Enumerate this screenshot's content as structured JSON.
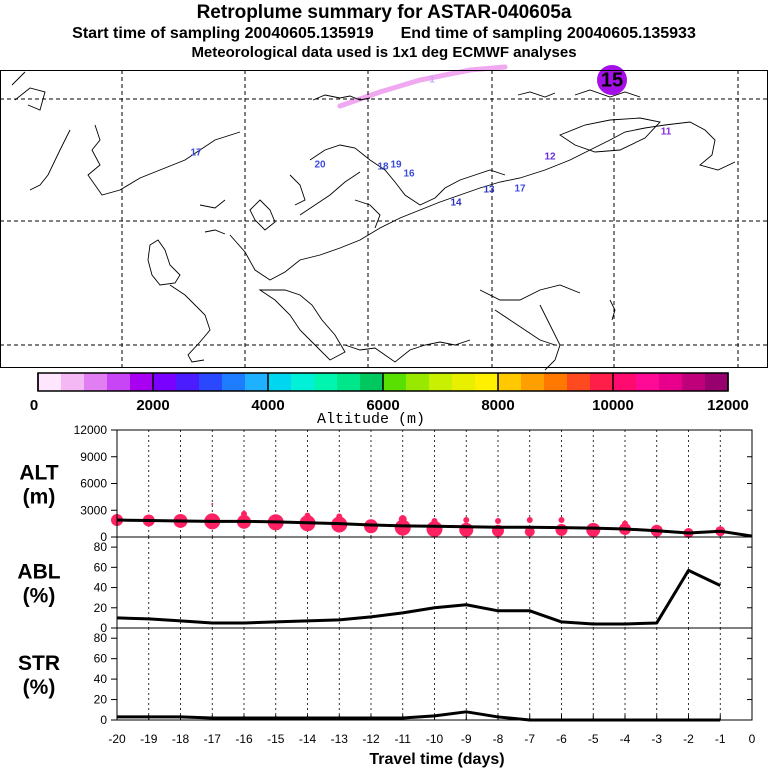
{
  "header": {
    "title": "Retroplume summary for ASTAR-040605a",
    "start_label": "Start time of sampling",
    "start_value": "20040605.135919",
    "end_label": "End time of sampling",
    "end_value": "20040605.135933",
    "met_note": "Meteorological data used is 1x1 deg ECMWF analyses"
  },
  "map": {
    "labels": [
      {
        "text": "1",
        "color": "#c9a3ff"
      },
      {
        "text": "15",
        "color": "#9400e0"
      },
      {
        "text": "17",
        "color": "#3a4bdc"
      },
      {
        "text": "20",
        "color": "#3a4bdc"
      },
      {
        "text": "19",
        "color": "#3a4bdc"
      },
      {
        "text": "18",
        "color": "#3a4bdc"
      },
      {
        "text": "16",
        "color": "#3a4bdc"
      },
      {
        "text": "13",
        "color": "#2d35c0"
      },
      {
        "text": "14",
        "color": "#2d35c0"
      },
      {
        "text": "17",
        "color": "#3a4bdc"
      },
      {
        "text": "12",
        "color": "#6a2ce0"
      },
      {
        "text": "11",
        "color": "#8a2ae0"
      }
    ]
  },
  "colorbar": {
    "colors": [
      "#ffe6ff",
      "#f4b8f4",
      "#e07ef2",
      "#c845f5",
      "#a800f0",
      "#7a00ff",
      "#4b1cff",
      "#2a48ff",
      "#1e7cff",
      "#1fb0ff",
      "#00d6f0",
      "#00f0d8",
      "#00f5b0",
      "#00e68a",
      "#00c85e",
      "#5ae000",
      "#98e800",
      "#c8f000",
      "#e8f000",
      "#fff000",
      "#ffc800",
      "#ffa000",
      "#ff7800",
      "#ff4a20",
      "#ff1e4a",
      "#ff0a6e",
      "#ff0a96",
      "#e8008c",
      "#c0007a",
      "#980070"
    ],
    "tick_labels": [
      "0",
      "2000",
      "4000",
      "6000",
      "8000",
      "10000",
      "12000"
    ],
    "axis_label": "Altitude (m)"
  },
  "chart_data": [
    {
      "type": "line",
      "panel": "ALT",
      "ylabel_line1": "ALT",
      "ylabel_line2": "(m)",
      "x": [
        -20,
        -19,
        -18,
        -17,
        -16,
        -15,
        -14,
        -13,
        -12,
        -11,
        -10,
        -9,
        -8,
        -7,
        -6,
        -5,
        -4,
        -3,
        -2,
        -1,
        0
      ],
      "ylim": [
        0,
        12000
      ],
      "ytick_labels": [
        "12000",
        "9000",
        "6000",
        "3000",
        "0"
      ],
      "series": [
        {
          "name": "mean altitude",
          "values": [
            1900,
            1850,
            1800,
            1750,
            1750,
            1700,
            1600,
            1500,
            1350,
            1250,
            1200,
            1150,
            1100,
            1100,
            1050,
            1000,
            900,
            700,
            450,
            650,
            100
          ]
        }
      ],
      "dots": [
        {
          "x": -20,
          "y": 1900,
          "r": 6
        },
        {
          "x": -19,
          "y": 1850,
          "r": 6
        },
        {
          "x": -18,
          "y": 1800,
          "r": 7
        },
        {
          "x": -17,
          "y": 1750,
          "r": 8
        },
        {
          "x": -17,
          "y": 3700,
          "r": 1
        },
        {
          "x": -16,
          "y": 1700,
          "r": 7
        },
        {
          "x": -16,
          "y": 2600,
          "r": 3
        },
        {
          "x": -15,
          "y": 1650,
          "r": 8
        },
        {
          "x": -14,
          "y": 1550,
          "r": 8
        },
        {
          "x": -14,
          "y": 2400,
          "r": 3
        },
        {
          "x": -13,
          "y": 1400,
          "r": 8
        },
        {
          "x": -13,
          "y": 2300,
          "r": 3
        },
        {
          "x": -12,
          "y": 1200,
          "r": 7
        },
        {
          "x": -11,
          "y": 1050,
          "r": 8
        },
        {
          "x": -11,
          "y": 2000,
          "r": 4
        },
        {
          "x": -10,
          "y": 900,
          "r": 8
        },
        {
          "x": -10,
          "y": 1800,
          "r": 3
        },
        {
          "x": -9,
          "y": 800,
          "r": 7
        },
        {
          "x": -9,
          "y": 1900,
          "r": 3
        },
        {
          "x": -8,
          "y": 700,
          "r": 6
        },
        {
          "x": -8,
          "y": 1800,
          "r": 3
        },
        {
          "x": -7,
          "y": 600,
          "r": 5
        },
        {
          "x": -7,
          "y": 1900,
          "r": 3
        },
        {
          "x": -6,
          "y": 800,
          "r": 6
        },
        {
          "x": -6,
          "y": 1900,
          "r": 3
        },
        {
          "x": -5,
          "y": 800,
          "r": 7
        },
        {
          "x": -4,
          "y": 900,
          "r": 6
        },
        {
          "x": -4,
          "y": 1500,
          "r": 3
        },
        {
          "x": -3,
          "y": 700,
          "r": 6
        },
        {
          "x": -2,
          "y": 450,
          "r": 5
        },
        {
          "x": -1,
          "y": 650,
          "r": 5
        }
      ]
    },
    {
      "type": "line",
      "panel": "ABL",
      "ylabel_line1": "ABL",
      "ylabel_line2": "(%)",
      "x": [
        -20,
        -19,
        -18,
        -17,
        -16,
        -15,
        -14,
        -13,
        -12,
        -11,
        -10,
        -9,
        -8,
        -7,
        -6,
        -5,
        -4,
        -3,
        -2,
        -1
      ],
      "ylim": [
        0,
        90
      ],
      "ytick_labels": [
        "80",
        "60",
        "40",
        "20",
        "0"
      ],
      "series": [
        {
          "name": "fraction in ABL",
          "values": [
            10,
            9,
            7,
            5,
            5,
            6,
            7,
            8,
            11,
            15,
            20,
            23,
            17,
            17,
            6,
            4,
            4,
            5,
            57,
            42
          ]
        }
      ]
    },
    {
      "type": "line",
      "panel": "STR",
      "ylabel_line1": "STR",
      "ylabel_line2": "(%)",
      "x": [
        -20,
        -19,
        -18,
        -17,
        -16,
        -15,
        -14,
        -13,
        -12,
        -11,
        -10,
        -9,
        -8,
        -7,
        -6,
        -5,
        -4,
        -3,
        -2,
        -1
      ],
      "ylim": [
        0,
        90
      ],
      "ytick_labels": [
        "80",
        "60",
        "40",
        "20",
        "0"
      ],
      "series": [
        {
          "name": "fraction in stratosphere",
          "values": [
            3,
            3,
            3,
            2,
            2,
            2,
            2,
            2,
            2,
            2,
            4,
            8,
            3,
            0,
            0,
            0,
            0,
            0,
            0,
            0
          ]
        }
      ]
    }
  ],
  "xaxis": {
    "tick_labels": [
      "-20",
      "-19",
      "-18",
      "-17",
      "-16",
      "-15",
      "-14",
      "-13",
      "-12",
      "-11",
      "-10",
      "-9",
      "-8",
      "-7",
      "-6",
      "-5",
      "-4",
      "-3",
      "-2",
      "-1",
      "0"
    ],
    "label": "Travel time (days)"
  },
  "style": {
    "dot_color": "#ff2262",
    "line_color": "#000000"
  }
}
